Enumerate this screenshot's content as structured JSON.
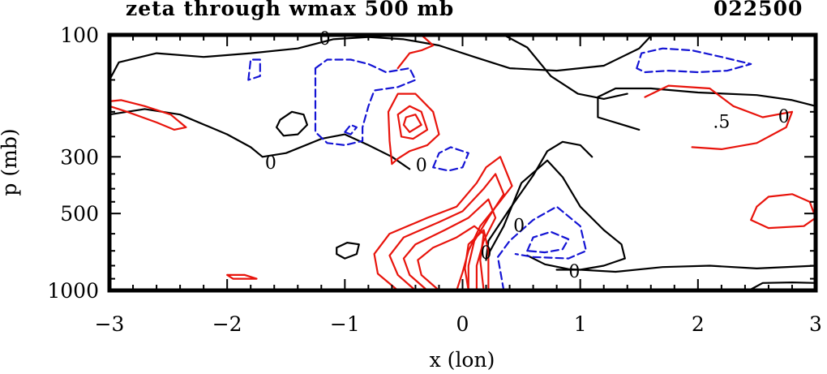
{
  "header": {
    "title": "zeta through wmax 500 mb",
    "timestamp": "022500"
  },
  "chart_data": {
    "type": "contour",
    "xlabel": "x (lon)",
    "ylabel": "p (mb)",
    "xlim": [
      -3,
      3
    ],
    "ylim": [
      100,
      1000
    ],
    "y_scale": "log",
    "x_ticks": [
      "−3",
      "−2",
      "−1",
      "0",
      "1",
      "2",
      "3"
    ],
    "x_tick_values": [
      -3,
      -2,
      -1,
      0,
      1,
      2,
      3
    ],
    "y_ticks": [
      "100",
      "300",
      "500",
      "1000"
    ],
    "y_tick_values": [
      100,
      300,
      500,
      1000
    ],
    "contour_labels": [
      {
        "text": "0",
        "x": -1.17,
        "p": 103
      },
      {
        "text": "0",
        "x": -1.63,
        "p": 315
      },
      {
        "text": "0",
        "x": -0.35,
        "p": 322
      },
      {
        "text": "0",
        "x": 0.95,
        "p": 840
      },
      {
        "text": "0",
        "x": 2.73,
        "p": 208
      },
      {
        "text": ".5",
        "x": 2.2,
        "p": 218
      },
      {
        "text": "0",
        "x": 0.2,
        "p": 710
      },
      {
        "text": "0",
        "x": 0.48,
        "p": 555
      }
    ],
    "colors": {
      "zero": "#000000",
      "positive": "#e8140c",
      "negative": "#1414d4"
    },
    "series": [
      {
        "level": 0,
        "points": [
          [
            -3,
            205
          ],
          [
            -2.7,
            195
          ],
          [
            -2.4,
            205
          ],
          [
            -2.0,
            245
          ],
          [
            -1.8,
            275
          ],
          [
            -1.7,
            300
          ],
          [
            -1.5,
            290
          ],
          [
            -1.2,
            255
          ],
          [
            -1.0,
            245
          ],
          [
            -0.8,
            270
          ],
          [
            -0.6,
            300
          ],
          [
            -0.45,
            335
          ]
        ]
      },
      {
        "level": 0,
        "points": [
          [
            -3,
            150
          ],
          [
            -2.92,
            128
          ],
          [
            -2.6,
            118
          ],
          [
            -2.2,
            122
          ],
          [
            -1.8,
            118
          ],
          [
            -1.4,
            113
          ],
          [
            -1.1,
            104
          ],
          [
            -0.8,
            102
          ],
          [
            -0.5,
            104
          ],
          [
            -0.2,
            110
          ],
          [
            0.1,
            122
          ],
          [
            0.4,
            135
          ],
          [
            0.8,
            138
          ],
          [
            1.2,
            132
          ],
          [
            1.5,
            113
          ],
          [
            1.6,
            101
          ]
        ]
      },
      {
        "level": 0,
        "points": [
          [
            0.35,
            100
          ],
          [
            0.55,
            112
          ],
          [
            0.75,
            145
          ],
          [
            0.98,
            170
          ],
          [
            1.2,
            178
          ],
          [
            1.4,
            170
          ]
        ]
      },
      {
        "level": 0,
        "points": [
          [
            -1.58,
            230
          ],
          [
            -1.55,
            215
          ],
          [
            -1.45,
            200
          ],
          [
            -1.35,
            205
          ],
          [
            -1.32,
            225
          ],
          [
            -1.4,
            245
          ],
          [
            -1.52,
            248
          ],
          [
            -1.58,
            230
          ]
        ]
      },
      {
        "level": 0,
        "points": [
          [
            -1.07,
            680
          ],
          [
            -0.98,
            650
          ],
          [
            -0.88,
            660
          ],
          [
            -0.9,
            720
          ],
          [
            -1.0,
            750
          ],
          [
            -1.07,
            720
          ],
          [
            -1.07,
            680
          ]
        ]
      },
      {
        "level": 0,
        "points": [
          [
            0.22,
            720
          ],
          [
            0.35,
            560
          ],
          [
            0.5,
            380
          ],
          [
            0.72,
            310
          ],
          [
            0.85,
            360
          ],
          [
            1.0,
            470
          ],
          [
            1.2,
            580
          ],
          [
            1.35,
            660
          ],
          [
            1.38,
            750
          ],
          [
            1.2,
            800
          ],
          [
            1.0,
            830
          ],
          [
            0.8,
            830
          ]
        ]
      },
      {
        "level": 0,
        "points": [
          [
            0.55,
            730
          ],
          [
            0.7,
            790
          ],
          [
            0.9,
            825
          ],
          [
            1.3,
            845
          ],
          [
            1.7,
            810
          ],
          [
            2.1,
            800
          ],
          [
            2.5,
            820
          ],
          [
            3.0,
            800
          ]
        ]
      },
      {
        "level": 0,
        "points": [
          [
            0.2,
            760
          ],
          [
            0.22,
            640
          ],
          [
            0.4,
            480
          ],
          [
            0.6,
            355
          ],
          [
            0.72,
            285
          ],
          [
            0.85,
            262
          ],
          [
            1.0,
            270
          ],
          [
            1.1,
            300
          ]
        ]
      },
      {
        "level": 0,
        "points": [
          [
            2.45,
            990
          ],
          [
            2.55,
            935
          ],
          [
            2.8,
            930
          ],
          [
            3.0,
            935
          ]
        ]
      },
      {
        "level": 0,
        "points": [
          [
            1.5,
            235
          ],
          [
            1.15,
            210
          ],
          [
            1.15,
            175
          ],
          [
            1.3,
            162
          ],
          [
            1.6,
            162
          ],
          [
            2.0,
            168
          ],
          [
            2.5,
            172
          ],
          [
            2.8,
            180
          ],
          [
            3.0,
            190
          ]
        ]
      },
      {
        "level": 0.5,
        "points": [
          [
            -3,
            190
          ],
          [
            -2.85,
            200
          ],
          [
            -2.6,
            220
          ],
          [
            -2.45,
            235
          ],
          [
            -2.35,
            230
          ],
          [
            -2.48,
            205
          ],
          [
            -2.7,
            190
          ],
          [
            -2.9,
            180
          ],
          [
            -3,
            182
          ]
        ]
      },
      {
        "level": 0.5,
        "points": [
          [
            -0.6,
            320
          ],
          [
            -0.62,
            260
          ],
          [
            -0.63,
            200
          ],
          [
            -0.55,
            170
          ],
          [
            -0.4,
            170
          ],
          [
            -0.25,
            200
          ],
          [
            -0.2,
            245
          ],
          [
            -0.3,
            270
          ],
          [
            -0.45,
            285
          ],
          [
            -0.55,
            305
          ],
          [
            -0.6,
            320
          ]
        ]
      },
      {
        "level": 0.5,
        "points": [
          [
            -0.52,
            250
          ],
          [
            -0.55,
            205
          ],
          [
            -0.45,
            190
          ],
          [
            -0.35,
            200
          ],
          [
            -0.3,
            235
          ],
          [
            -0.42,
            255
          ],
          [
            -0.52,
            250
          ]
        ]
      },
      {
        "level": 0.5,
        "points": [
          [
            -0.5,
            225
          ],
          [
            -0.48,
            210
          ],
          [
            -0.4,
            205
          ],
          [
            -0.35,
            225
          ],
          [
            -0.45,
            240
          ],
          [
            -0.5,
            225
          ]
        ]
      },
      {
        "level": 0.5,
        "points": [
          [
            -0.55,
            135
          ],
          [
            -0.45,
            118
          ],
          [
            -0.35,
            115
          ],
          [
            -0.25,
            110
          ],
          [
            -0.35,
            100
          ]
        ]
      },
      {
        "level": 0.5,
        "points": [
          [
            -0.55,
            1000
          ],
          [
            -0.72,
            860
          ],
          [
            -0.75,
            720
          ],
          [
            -0.62,
            600
          ],
          [
            -0.3,
            520
          ],
          [
            -0.05,
            470
          ],
          [
            0.12,
            380
          ],
          [
            0.2,
            330
          ],
          [
            0.32,
            300
          ],
          [
            0.42,
            390
          ],
          [
            0.3,
            460
          ],
          [
            0.15,
            560
          ],
          [
            0.05,
            700
          ],
          [
            0.0,
            850
          ],
          [
            -0.05,
            1000
          ]
        ]
      },
      {
        "level": 0.5,
        "points": [
          [
            -0.4,
            1000
          ],
          [
            -0.55,
            870
          ],
          [
            -0.62,
            730
          ],
          [
            -0.5,
            620
          ],
          [
            -0.2,
            540
          ],
          [
            0.0,
            490
          ],
          [
            0.18,
            400
          ],
          [
            0.28,
            350
          ],
          [
            0.35,
            420
          ],
          [
            0.22,
            520
          ],
          [
            0.1,
            640
          ],
          [
            0.05,
            800
          ],
          [
            0.05,
            1000
          ]
        ]
      },
      {
        "level": 0.5,
        "points": [
          [
            -0.3,
            1000
          ],
          [
            -0.45,
            870
          ],
          [
            -0.5,
            750
          ],
          [
            -0.4,
            660
          ],
          [
            -0.15,
            580
          ],
          [
            0.05,
            520
          ],
          [
            0.22,
            440
          ],
          [
            0.28,
            520
          ],
          [
            0.18,
            640
          ],
          [
            0.12,
            800
          ],
          [
            0.12,
            1000
          ]
        ]
      },
      {
        "level": 0.5,
        "points": [
          [
            -0.2,
            1000
          ],
          [
            -0.35,
            870
          ],
          [
            -0.38,
            760
          ],
          [
            -0.25,
            680
          ],
          [
            -0.05,
            620
          ],
          [
            0.1,
            560
          ],
          [
            0.18,
            600
          ],
          [
            0.15,
            760
          ],
          [
            0.18,
            1000
          ]
        ]
      },
      {
        "level": 0.5,
        "points": [
          [
            0.05,
            1000
          ],
          [
            0.02,
            820
          ],
          [
            0.05,
            660
          ],
          [
            0.18,
            580
          ],
          [
            0.22,
            700
          ],
          [
            0.22,
            1000
          ]
        ]
      },
      {
        "level": 0.5,
        "points": [
          [
            1.55,
            175
          ],
          [
            1.75,
            158
          ],
          [
            2.1,
            162
          ],
          [
            2.3,
            190
          ],
          [
            2.55,
            210
          ],
          [
            2.8,
            200
          ],
          [
            2.75,
            230
          ],
          [
            2.5,
            265
          ],
          [
            2.2,
            280
          ],
          [
            1.95,
            275
          ]
        ]
      },
      {
        "level": 0.5,
        "points": [
          [
            2.5,
            470
          ],
          [
            2.45,
            530
          ],
          [
            2.6,
            570
          ],
          [
            2.9,
            560
          ],
          [
            3.0,
            520
          ],
          [
            2.95,
            450
          ],
          [
            2.8,
            420
          ],
          [
            2.6,
            430
          ],
          [
            2.5,
            470
          ]
        ]
      },
      {
        "level": 0.5,
        "points": [
          [
            -2.0,
            870
          ],
          [
            -1.85,
            870
          ],
          [
            -1.75,
            900
          ],
          [
            -1.95,
            900
          ],
          [
            -2.0,
            870
          ]
        ]
      },
      {
        "level": -0.5,
        "points": [
          [
            -1.82,
            150
          ],
          [
            -1.8,
            125
          ],
          [
            -1.72,
            125
          ],
          [
            -1.72,
            145
          ],
          [
            -1.82,
            150
          ]
        ]
      },
      {
        "level": -0.5,
        "points": [
          [
            -1.25,
            135
          ],
          [
            -1.15,
            125
          ],
          [
            -0.95,
            125
          ],
          [
            -0.8,
            130
          ],
          [
            -0.65,
            140
          ],
          [
            -0.45,
            135
          ],
          [
            -0.4,
            150
          ],
          [
            -0.55,
            160
          ],
          [
            -0.75,
            165
          ],
          [
            -0.8,
            190
          ],
          [
            -0.85,
            230
          ],
          [
            -0.85,
            260
          ],
          [
            -1.0,
            270
          ],
          [
            -1.15,
            265
          ],
          [
            -1.25,
            240
          ],
          [
            -1.25,
            135
          ]
        ]
      },
      {
        "level": -0.5,
        "points": [
          [
            -1.0,
            240
          ],
          [
            -0.95,
            225
          ],
          [
            -0.9,
            230
          ],
          [
            -0.95,
            245
          ],
          [
            -1.0,
            240
          ]
        ]
      },
      {
        "level": -0.5,
        "points": [
          [
            -0.25,
            330
          ],
          [
            -0.2,
            290
          ],
          [
            -0.1,
            275
          ],
          [
            0.05,
            290
          ],
          [
            0.0,
            330
          ],
          [
            -0.12,
            340
          ],
          [
            -0.25,
            330
          ]
        ]
      },
      {
        "level": -0.5,
        "points": [
          [
            0.35,
            1000
          ],
          [
            0.3,
            740
          ],
          [
            0.4,
            640
          ],
          [
            0.6,
            530
          ],
          [
            0.8,
            470
          ],
          [
            1.0,
            560
          ],
          [
            1.05,
            700
          ],
          [
            0.9,
            750
          ],
          [
            0.6,
            740
          ],
          [
            0.45,
            720
          ]
        ]
      },
      {
        "level": -0.5,
        "points": [
          [
            0.55,
            700
          ],
          [
            0.6,
            620
          ],
          [
            0.75,
            590
          ],
          [
            0.9,
            630
          ],
          [
            0.85,
            690
          ],
          [
            0.7,
            710
          ],
          [
            0.55,
            700
          ]
        ]
      },
      {
        "level": -0.5,
        "points": [
          [
            1.48,
            135
          ],
          [
            1.52,
            118
          ],
          [
            1.7,
            113
          ],
          [
            1.95,
            115
          ],
          [
            2.2,
            122
          ],
          [
            2.45,
            130
          ],
          [
            2.25,
            138
          ],
          [
            2.0,
            140
          ],
          [
            1.75,
            138
          ],
          [
            1.55,
            140
          ],
          [
            1.48,
            135
          ]
        ]
      }
    ]
  }
}
